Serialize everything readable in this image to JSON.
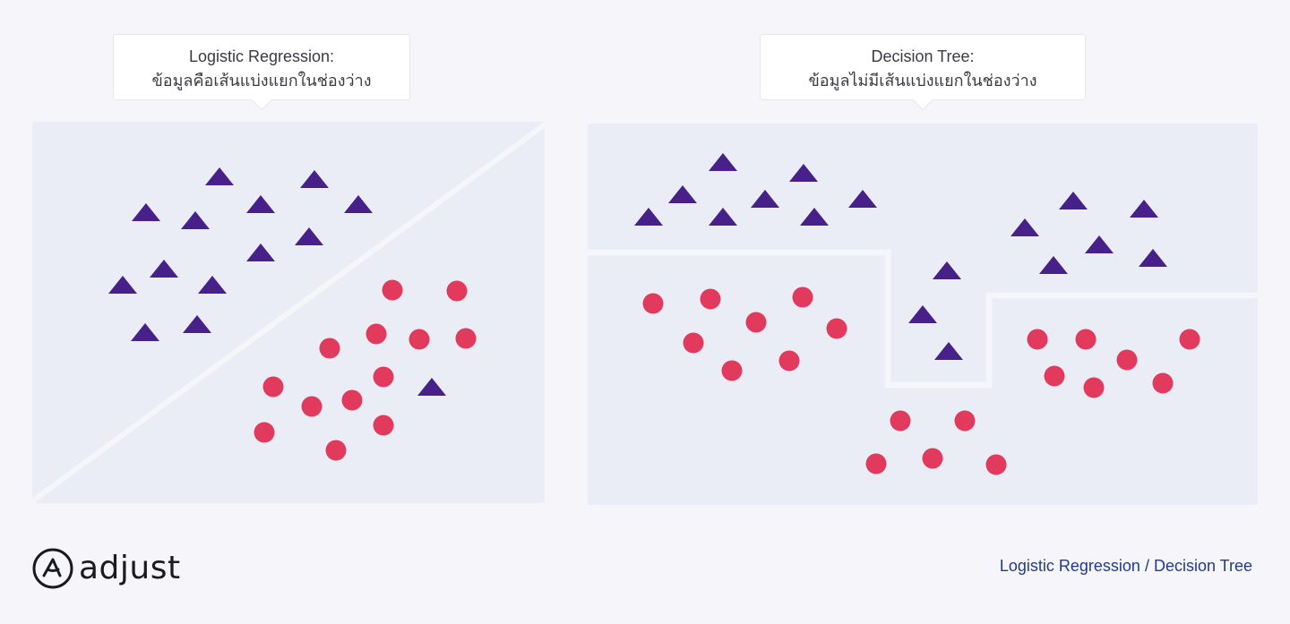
{
  "left_callout": {
    "title": "Logistic Regression:",
    "subtitle": "ข้อมูลคือเส้นแบ่งแยกในช่องว่าง"
  },
  "right_callout": {
    "title": "Decision Tree:",
    "subtitle": "ข้อมูลไม่มีเส้นแบ่งแยกในช่องว่าง"
  },
  "footer": {
    "brand": "adjust",
    "caption": "Logistic Regression / Decision Tree"
  },
  "colors": {
    "triangle": "#48208a",
    "circle": "#e23a5c",
    "panel": "#eaecf6",
    "separator": "#f6f6fa",
    "caption": "#1f3b8c"
  },
  "icons": [
    "adjust-logo-icon"
  ]
}
